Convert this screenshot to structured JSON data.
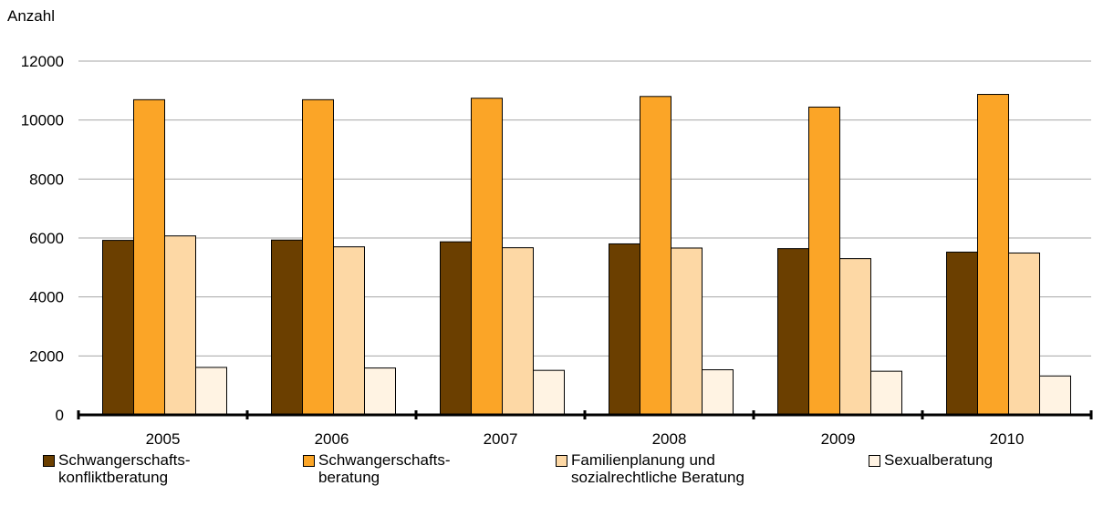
{
  "chart_data": {
    "type": "bar",
    "ylabel": "Anzahl",
    "xlabel": "",
    "ylim": [
      0,
      12000
    ],
    "yticks": [
      0,
      2000,
      4000,
      6000,
      8000,
      10000,
      12000
    ],
    "grid": true,
    "legend_position": "bottom",
    "categories": [
      "2005",
      "2006",
      "2007",
      "2008",
      "2009",
      "2010"
    ],
    "series": [
      {
        "name": "Schwangerschafts-konfliktberatung",
        "legend_lines": [
          "Schwangerschafts-",
          "konfliktberatung"
        ],
        "color": "#6b3f00",
        "values": [
          5920,
          5930,
          5870,
          5800,
          5640,
          5520
        ]
      },
      {
        "name": "Schwangerschafts-beratung",
        "legend_lines": [
          "Schwangerschafts-",
          "beratung"
        ],
        "color": "#fba527",
        "values": [
          10690,
          10690,
          10740,
          10800,
          10440,
          10870
        ]
      },
      {
        "name": "Familienplanung und sozialrechtliche Beratung",
        "legend_lines": [
          "Familienplanung und",
          "sozialrechtliche Beratung"
        ],
        "color": "#fdd8a5",
        "values": [
          6070,
          5700,
          5670,
          5660,
          5300,
          5490
        ]
      },
      {
        "name": "Sexualberatung",
        "legend_lines": [
          "Sexualberatung"
        ],
        "color": "#fff3e3",
        "values": [
          1610,
          1590,
          1510,
          1530,
          1480,
          1320
        ]
      }
    ]
  }
}
